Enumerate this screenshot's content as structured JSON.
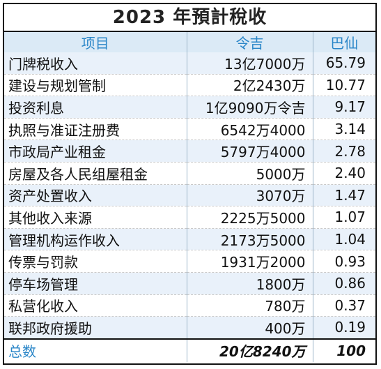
{
  "title": "2023 年預計稅收",
  "columns": {
    "item": "项目",
    "ringgit": "令吉",
    "percent": "巴仙"
  },
  "rows": [
    {
      "item": "门牌税收入",
      "amount": "13亿7000万",
      "percent": "65.79"
    },
    {
      "item": "建设与规划管制",
      "amount": "2亿2430万",
      "percent": "10.77"
    },
    {
      "item": "投资利息",
      "amount": "1亿9090万令吉",
      "percent": "9.17"
    },
    {
      "item": "执照与准证注册费",
      "amount": "6542万4000",
      "percent": "3.14"
    },
    {
      "item": "市政局产业租金",
      "amount": "5797万4000",
      "percent": "2.78"
    },
    {
      "item": "房屋及各人民组屋租金",
      "amount": "5000万",
      "percent": "2.40"
    },
    {
      "item": "资产处置收入",
      "amount": "3070万",
      "percent": "1.47"
    },
    {
      "item": "其他收入来源",
      "amount": "2225万5000",
      "percent": "1.07"
    },
    {
      "item": "管理机构运作收入",
      "amount": "2173万5000",
      "percent": "1.04"
    },
    {
      "item": "传票与罚款",
      "amount": "1931万2000",
      "percent": "0.93"
    },
    {
      "item": "停车场管理",
      "amount": "1800万",
      "percent": "0.86"
    },
    {
      "item": "私营化收入",
      "amount": "780万",
      "percent": "0.37"
    },
    {
      "item": "联邦政府援助",
      "amount": "400万",
      "percent": "0.19"
    }
  ],
  "total": {
    "item": "总数",
    "amount": "20亿8240万",
    "percent": "100"
  },
  "colors": {
    "header_text": "#2a86c8",
    "header_bg": "#dbeaf6",
    "stripe_bg": "#e9f1fa"
  }
}
